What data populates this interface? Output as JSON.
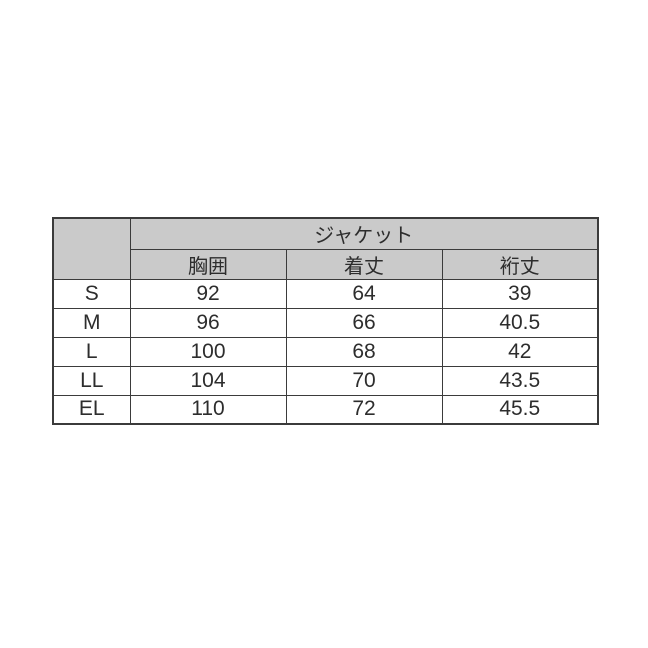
{
  "chart_data": {
    "type": "table",
    "title": "",
    "group_header": "ジャケット",
    "corner_label": "",
    "columns": [
      "胸囲",
      "着丈",
      "裄丈"
    ],
    "rows": [
      {
        "size": "S",
        "values": [
          "92",
          "64",
          "39"
        ]
      },
      {
        "size": "M",
        "values": [
          "96",
          "66",
          "40.5"
        ]
      },
      {
        "size": "L",
        "values": [
          "100",
          "68",
          "42"
        ]
      },
      {
        "size": "LL",
        "values": [
          "104",
          "70",
          "43.5"
        ]
      },
      {
        "size": "EL",
        "values": [
          "110",
          "72",
          "45.5"
        ]
      }
    ]
  },
  "colors": {
    "header_background": "#cacaca",
    "border": "#3b3b3b",
    "text": "#2d2d2d",
    "page_background": "#ffffff"
  }
}
